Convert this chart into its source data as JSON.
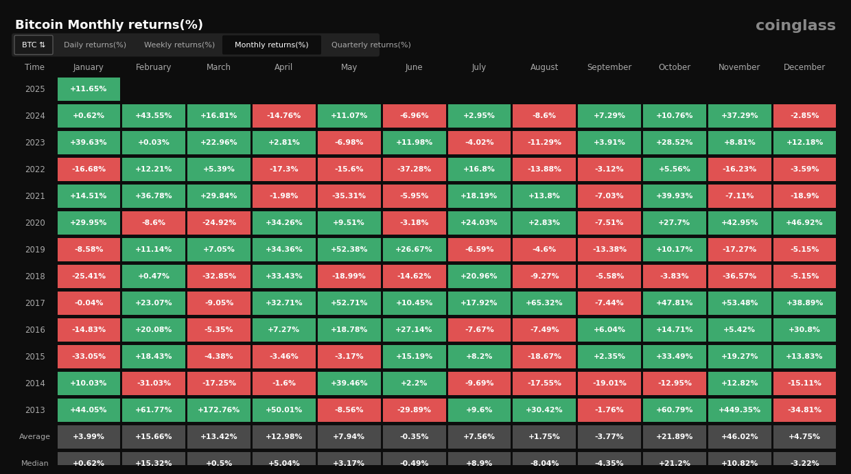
{
  "title": "Bitcoin Monthly returns(%)",
  "source": "coinglass",
  "bg_color": "#0d0d0d",
  "positive_color": "#3daa6e",
  "negative_color": "#e05252",
  "text_color": "#ffffff",
  "gray_row_color": "#4a4a4a",
  "header_bg": "#1a1a1a",
  "months": [
    "January",
    "February",
    "March",
    "April",
    "May",
    "June",
    "July",
    "August",
    "September",
    "October",
    "November",
    "December"
  ],
  "years": [
    "2025",
    "2024",
    "2023",
    "2022",
    "2021",
    "2020",
    "2019",
    "2018",
    "2017",
    "2016",
    "2015",
    "2014",
    "2013"
  ],
  "data": {
    "2025": [
      11.65,
      null,
      null,
      null,
      null,
      null,
      null,
      null,
      null,
      null,
      null,
      null
    ],
    "2024": [
      0.62,
      43.55,
      16.81,
      -14.76,
      11.07,
      -6.96,
      2.95,
      -8.6,
      7.29,
      10.76,
      37.29,
      -2.85
    ],
    "2023": [
      39.63,
      0.03,
      22.96,
      2.81,
      -6.98,
      11.98,
      -4.02,
      -11.29,
      3.91,
      28.52,
      8.81,
      12.18
    ],
    "2022": [
      -16.68,
      12.21,
      5.39,
      -17.3,
      -15.6,
      -37.28,
      16.8,
      -13.88,
      -3.12,
      5.56,
      -16.23,
      -3.59
    ],
    "2021": [
      14.51,
      36.78,
      29.84,
      -1.98,
      -35.31,
      -5.95,
      18.19,
      13.8,
      -7.03,
      39.93,
      -7.11,
      -18.9
    ],
    "2020": [
      29.95,
      -8.6,
      -24.92,
      34.26,
      9.51,
      -3.18,
      24.03,
      2.83,
      -7.51,
      27.7,
      42.95,
      46.92
    ],
    "2019": [
      -8.58,
      11.14,
      7.05,
      34.36,
      52.38,
      26.67,
      -6.59,
      -4.6,
      -13.38,
      10.17,
      -17.27,
      -5.15
    ],
    "2018": [
      -25.41,
      0.47,
      -32.85,
      33.43,
      -18.99,
      -14.62,
      20.96,
      -9.27,
      -5.58,
      -3.83,
      -36.57,
      -5.15
    ],
    "2017": [
      -0.04,
      23.07,
      -9.05,
      32.71,
      52.71,
      10.45,
      17.92,
      65.32,
      -7.44,
      47.81,
      53.48,
      38.89
    ],
    "2016": [
      -14.83,
      20.08,
      -5.35,
      7.27,
      18.78,
      27.14,
      -7.67,
      -7.49,
      6.04,
      14.71,
      5.42,
      30.8
    ],
    "2015": [
      -33.05,
      18.43,
      -4.38,
      -3.46,
      -3.17,
      15.19,
      8.2,
      -18.67,
      2.35,
      33.49,
      19.27,
      13.83
    ],
    "2014": [
      10.03,
      -31.03,
      -17.25,
      -1.6,
      39.46,
      2.2,
      -9.69,
      -17.55,
      -19.01,
      -12.95,
      12.82,
      -15.11
    ],
    "2013": [
      44.05,
      61.77,
      172.76,
      50.01,
      -8.56,
      -29.89,
      9.6,
      30.42,
      -1.76,
      60.79,
      449.35,
      -34.81
    ]
  },
  "average": [
    3.99,
    15.66,
    13.42,
    12.98,
    7.94,
    -0.35,
    7.56,
    1.75,
    -3.77,
    21.89,
    46.02,
    4.75
  ],
  "median": [
    0.62,
    15.32,
    0.5,
    5.04,
    3.17,
    -0.49,
    8.9,
    -8.04,
    -4.35,
    21.2,
    10.82,
    -3.22
  ]
}
